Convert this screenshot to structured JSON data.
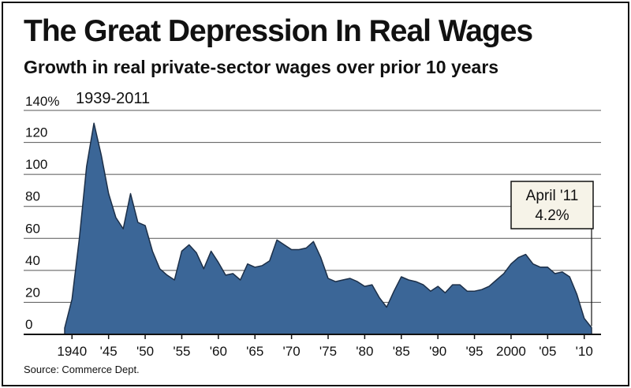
{
  "chart_data": {
    "type": "area",
    "title": "The Great Depression In Real Wages",
    "subtitle": "Growth in real private-sector wages over prior 10 years",
    "date_range_label": "1939-2011",
    "source": "Source: Commerce Dept.",
    "y_axis": {
      "min": 0,
      "max": 140,
      "ticks": [
        0,
        20,
        40,
        60,
        80,
        100,
        120,
        140
      ],
      "tick_labels": [
        "0",
        "20",
        "40",
        "60",
        "80",
        "100",
        "120",
        "140%"
      ]
    },
    "x_axis": {
      "min": 1939,
      "max": 2011,
      "ticks": [
        1940,
        1945,
        1950,
        1955,
        1960,
        1965,
        1970,
        1975,
        1980,
        1985,
        1990,
        1995,
        2000,
        2005,
        2010
      ],
      "tick_labels": [
        "1940",
        "'45",
        "'50",
        "'55",
        "'60",
        "'65",
        "'70",
        "'75",
        "'80",
        "'85",
        "'90",
        "'95",
        "2000",
        "'05",
        "'10"
      ]
    },
    "grid": "horizontal",
    "colors": {
      "fill": "#3b6697",
      "stroke": "#1c2f48",
      "background": "#ffffff",
      "grid": "#555555"
    },
    "series": [
      {
        "points": [
          [
            1939,
            4
          ],
          [
            1940,
            22
          ],
          [
            1941,
            60
          ],
          [
            1942,
            105
          ],
          [
            1943,
            132
          ],
          [
            1944,
            112
          ],
          [
            1945,
            88
          ],
          [
            1946,
            73
          ],
          [
            1947,
            66
          ],
          [
            1948,
            88
          ],
          [
            1949,
            70
          ],
          [
            1950,
            68
          ],
          [
            1951,
            52
          ],
          [
            1952,
            41
          ],
          [
            1953,
            37
          ],
          [
            1954,
            34
          ],
          [
            1955,
            52
          ],
          [
            1956,
            56
          ],
          [
            1957,
            51
          ],
          [
            1958,
            41
          ],
          [
            1959,
            52
          ],
          [
            1960,
            45
          ],
          [
            1961,
            37
          ],
          [
            1962,
            38
          ],
          [
            1963,
            34
          ],
          [
            1964,
            44
          ],
          [
            1965,
            42
          ],
          [
            1966,
            43
          ],
          [
            1967,
            46
          ],
          [
            1968,
            59
          ],
          [
            1969,
            56
          ],
          [
            1970,
            53
          ],
          [
            1971,
            53
          ],
          [
            1972,
            54
          ],
          [
            1973,
            58
          ],
          [
            1974,
            48
          ],
          [
            1975,
            35
          ],
          [
            1976,
            33
          ],
          [
            1977,
            34
          ],
          [
            1978,
            35
          ],
          [
            1979,
            33
          ],
          [
            1980,
            30
          ],
          [
            1981,
            31
          ],
          [
            1982,
            23
          ],
          [
            1983,
            17
          ],
          [
            1984,
            27
          ],
          [
            1985,
            36
          ],
          [
            1986,
            34
          ],
          [
            1987,
            33
          ],
          [
            1988,
            31
          ],
          [
            1989,
            27
          ],
          [
            1990,
            30
          ],
          [
            1991,
            26
          ],
          [
            1992,
            31
          ],
          [
            1993,
            31
          ],
          [
            1994,
            27
          ],
          [
            1995,
            27
          ],
          [
            1996,
            28
          ],
          [
            1997,
            30
          ],
          [
            1998,
            34
          ],
          [
            1999,
            38
          ],
          [
            2000,
            44
          ],
          [
            2001,
            48
          ],
          [
            2002,
            50
          ],
          [
            2003,
            44
          ],
          [
            2004,
            42
          ],
          [
            2005,
            42
          ],
          [
            2006,
            38
          ],
          [
            2007,
            39
          ],
          [
            2008,
            36
          ],
          [
            2009,
            25
          ],
          [
            2010,
            10
          ],
          [
            2011,
            4.2
          ]
        ]
      }
    ],
    "annotation": {
      "line1": "April '11",
      "line2": "4.2%",
      "year": 2011,
      "value": 4.2
    }
  }
}
